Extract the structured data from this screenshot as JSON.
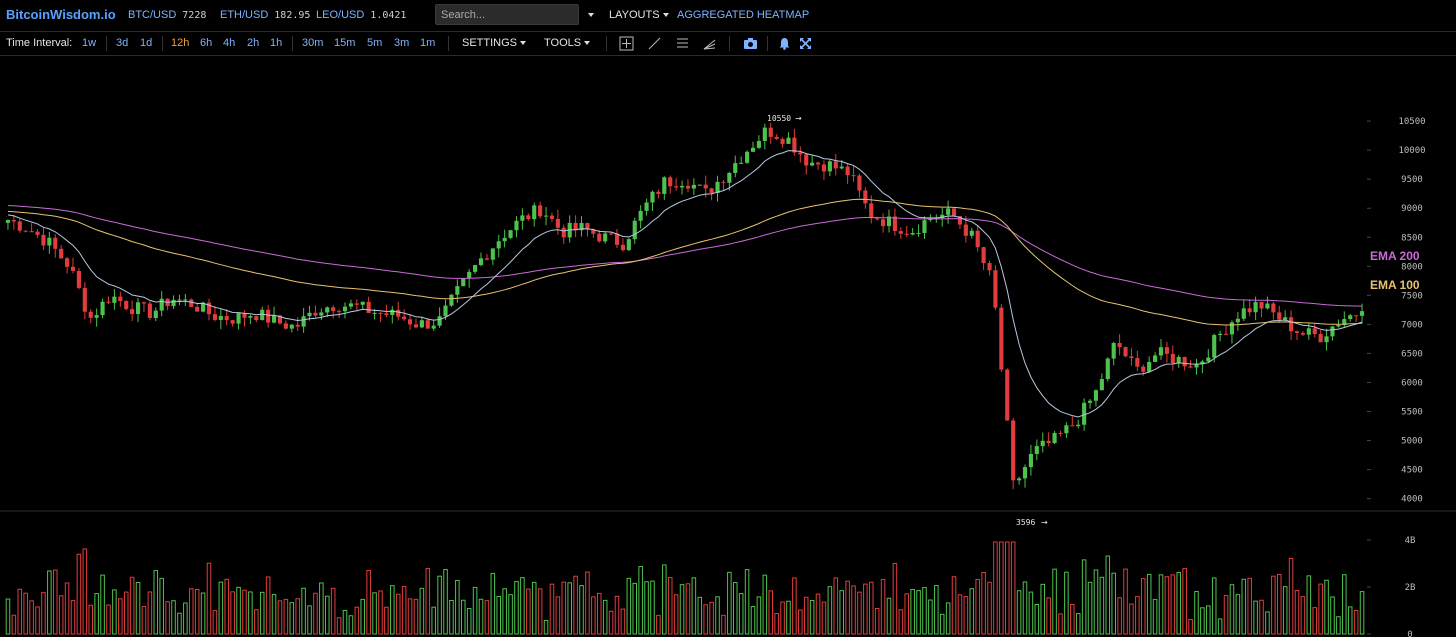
{
  "header": {
    "logo": "BitcoinWisdom.io",
    "tickers": [
      {
        "symbol": "BTC/USD",
        "price": "7228"
      },
      {
        "symbol": "ETH/USD",
        "price": "182.95"
      },
      {
        "symbol": "LEO/USD",
        "price": "1.0421"
      }
    ],
    "search_placeholder": "Search...",
    "layouts_label": "LAYOUTS",
    "heatmap_label": "AGGREGATED HEATMAP"
  },
  "toolbar": {
    "time_interval_label": "Time Interval:",
    "intervals": [
      "1w",
      "3d",
      "1d",
      "12h",
      "6h",
      "4h",
      "2h",
      "1h",
      "30m",
      "15m",
      "5m",
      "3m",
      "1m"
    ],
    "active_interval": "12h",
    "settings_label": "SETTINGS",
    "tools_label": "TOOLS",
    "icons": [
      "crosshair-icon",
      "line-icon",
      "horizontal-lines-icon",
      "fan-icon",
      "camera-icon",
      "bell-icon",
      "fullscreen-icon"
    ]
  },
  "colors": {
    "up": "#4ec24e",
    "down": "#e23c3c",
    "ema200": "#c96bd6",
    "ema100": "#e7c36f",
    "ema_short": "#b6c8e0",
    "accent": "#5aa0ff"
  },
  "chart_data": {
    "type": "candlestick",
    "price_axis_ticks": [
      10500,
      10000,
      9500,
      9000,
      8500,
      8000,
      7500,
      7000,
      6500,
      6000,
      5500,
      5000,
      4500,
      4000
    ],
    "ylim": [
      3500,
      10800
    ],
    "high_marker": {
      "label": "10550",
      "value": 10550
    },
    "low_marker": {
      "label": "3596",
      "value": 3596
    },
    "volume_axis_ticks": [
      "4B",
      "2B",
      "0"
    ],
    "series": [
      {
        "name": "EMA 200",
        "color": "#c96bd6",
        "last": 7590
      },
      {
        "name": "EMA 100",
        "color": "#e7c36f",
        "last": 7090
      }
    ],
    "close_anchors": [
      8800,
      8650,
      8400,
      8000,
      7100,
      7500,
      7300,
      7200,
      7450,
      7350,
      7150,
      7100,
      7200,
      7050,
      6950,
      7250,
      7350,
      7300,
      7200,
      7150,
      7000,
      7050,
      7600,
      8100,
      8500,
      8800,
      9000,
      8600,
      8650,
      8500,
      8400,
      9000,
      9450,
      9500,
      9250,
      9600,
      10000,
      10350,
      10200,
      9800,
      9750,
      9600,
      8900,
      8750,
      8600,
      8850,
      8900,
      8500,
      7700,
      4200,
      4800,
      5000,
      5300,
      5800,
      6700,
      6200,
      6500,
      6400,
      6300,
      6800,
      7200,
      7350,
      7100,
      6850,
      6800,
      7100,
      7228
    ]
  }
}
